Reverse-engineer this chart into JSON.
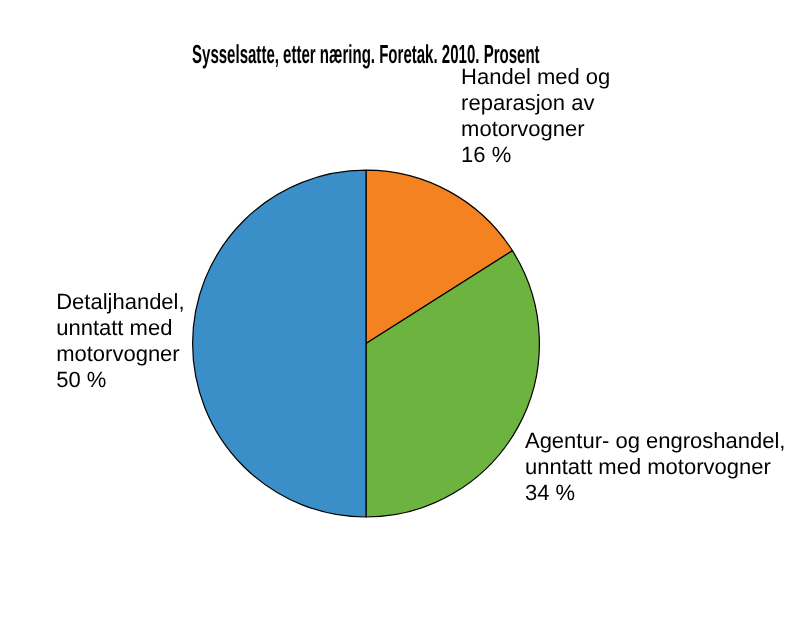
{
  "chart_data": {
    "type": "pie",
    "title": "Sysselsatte, etter næring. Foretak. 2010. Prosent",
    "categories": [
      "Handel med og reparasjon av motorvogner",
      "Agentur- og engroshandel, unntatt med motorvogner",
      "Detaljhandel, unntatt med motorvogner"
    ],
    "values": [
      16,
      34,
      50
    ],
    "colors": [
      "#f58220",
      "#6db33f",
      "#3a8fc9"
    ],
    "value_labels": [
      "16 %",
      "34 %",
      "50 %"
    ],
    "legend": false
  }
}
